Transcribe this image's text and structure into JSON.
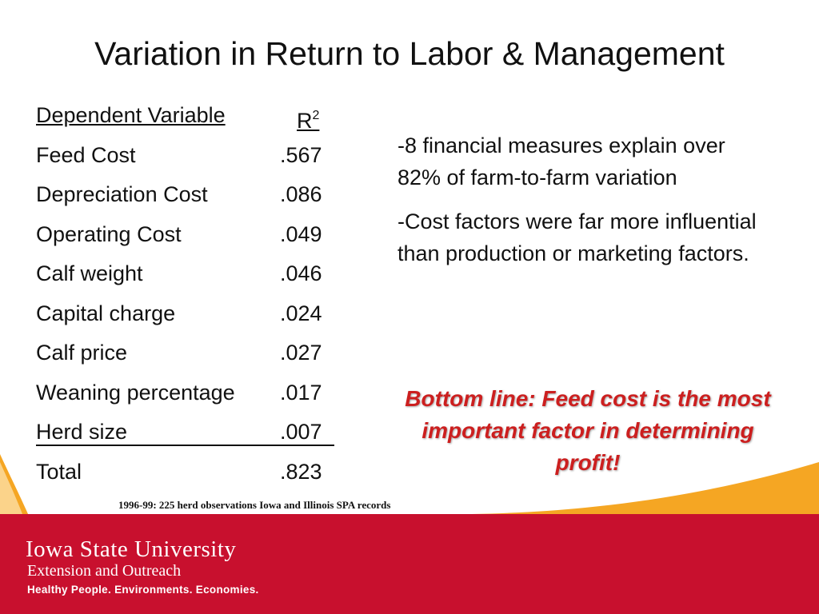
{
  "title": "Variation in Return to Labor & Management",
  "table": {
    "header_variable": "Dependent Variable",
    "header_r": "R",
    "header_r_sup": "2",
    "rows": [
      {
        "name": "Feed Cost",
        "value": ".567"
      },
      {
        "name": "Depreciation Cost",
        "value": ".086"
      },
      {
        "name": "Operating Cost",
        "value": ".049"
      },
      {
        "name": "Calf weight",
        "value": ".046"
      },
      {
        "name": "Capital charge",
        "value": ".024"
      },
      {
        "name": "Calf price",
        "value": ".027"
      },
      {
        "name": "Weaning percentage",
        "value": ".017"
      },
      {
        "name": "Herd size",
        "value": ".007"
      },
      {
        "name": "Total",
        "value": ".823"
      }
    ]
  },
  "notes": [
    "-8 financial measures explain over 82% of farm-to-farm variation",
    "-Cost factors were far more influential than production or marketing factors."
  ],
  "bottom_line": "Bottom line: Feed cost is the most important factor in determining profit!",
  "footnote": "1996-99: 225 herd observations Iowa and Illinois SPA records",
  "footer": {
    "university": "Iowa State University",
    "unit": "Extension and Outreach",
    "tagline": "Healthy People. Environments. Economies."
  },
  "colors": {
    "brand_red": "#c8102e",
    "accent_orange": "#f5a623",
    "emphasis_red": "#cc1f1f"
  }
}
